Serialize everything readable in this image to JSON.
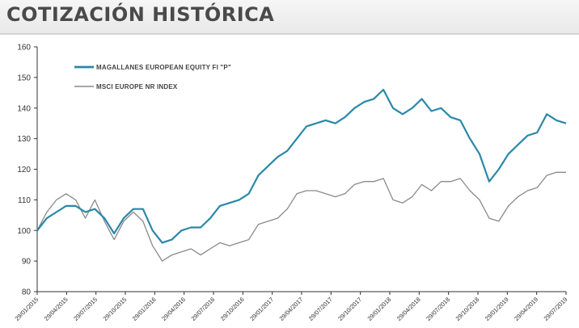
{
  "page": {
    "title": "COTIZACIÓN HISTÓRICA"
  },
  "colors": {
    "fund": "#2a88a8",
    "index": "#8a8a8a",
    "title": "#4a4a4a"
  },
  "chart_data": {
    "type": "line",
    "title": "",
    "xlabel": "",
    "ylabel": "",
    "ylim": [
      80,
      160
    ],
    "yticks": [
      80,
      90,
      100,
      110,
      120,
      130,
      140,
      150,
      160
    ],
    "grid": false,
    "legend_position": "top-left",
    "x_tick_labels": [
      "29/01/2015",
      "29/04/2015",
      "29/07/2015",
      "29/10/2015",
      "29/01/2016",
      "29/04/2016",
      "29/07/2016",
      "29/10/2016",
      "29/01/2017",
      "29/04/2017",
      "29/07/2017",
      "29/10/2017",
      "29/01/2018",
      "29/04/2018",
      "29/07/2018",
      "29/10/2018",
      "29/01/2019",
      "29/04/2019",
      "29/07/2019"
    ],
    "x": [
      "2015-01",
      "2015-02",
      "2015-03",
      "2015-04",
      "2015-05",
      "2015-06",
      "2015-07",
      "2015-08",
      "2015-09",
      "2015-10",
      "2015-11",
      "2015-12",
      "2016-01",
      "2016-02",
      "2016-03",
      "2016-04",
      "2016-05",
      "2016-06",
      "2016-07",
      "2016-08",
      "2016-09",
      "2016-10",
      "2016-11",
      "2016-12",
      "2017-01",
      "2017-02",
      "2017-03",
      "2017-04",
      "2017-05",
      "2017-06",
      "2017-07",
      "2017-08",
      "2017-09",
      "2017-10",
      "2017-11",
      "2017-12",
      "2018-01",
      "2018-02",
      "2018-03",
      "2018-04",
      "2018-05",
      "2018-06",
      "2018-07",
      "2018-08",
      "2018-09",
      "2018-10",
      "2018-11",
      "2018-12",
      "2019-01",
      "2019-02",
      "2019-03",
      "2019-04",
      "2019-05",
      "2019-06",
      "2019-07",
      "2019-08"
    ],
    "series": [
      {
        "name": "MAGALLANES EUROPEAN EQUITY FI \"P\"",
        "values": [
          100,
          104,
          106,
          108,
          108,
          106,
          107,
          104,
          99,
          104,
          107,
          107,
          100,
          96,
          97,
          100,
          101,
          101,
          104,
          108,
          109,
          110,
          112,
          118,
          121,
          124,
          126,
          130,
          134,
          135,
          136,
          135,
          137,
          140,
          142,
          143,
          146,
          140,
          138,
          140,
          143,
          139,
          140,
          137,
          136,
          130,
          125,
          116,
          120,
          125,
          128,
          131,
          132,
          138,
          136,
          135
        ]
      },
      {
        "name": "MSCI EUROPE NR INDEX",
        "values": [
          100,
          106,
          110,
          112,
          110,
          104,
          110,
          103,
          97,
          103,
          106,
          103,
          95,
          90,
          92,
          93,
          94,
          92,
          94,
          96,
          95,
          96,
          97,
          102,
          103,
          104,
          107,
          112,
          113,
          113,
          112,
          111,
          112,
          115,
          116,
          116,
          117,
          110,
          109,
          111,
          115,
          113,
          116,
          116,
          117,
          113,
          110,
          104,
          103,
          108,
          111,
          113,
          114,
          118,
          119,
          119
        ]
      }
    ]
  }
}
